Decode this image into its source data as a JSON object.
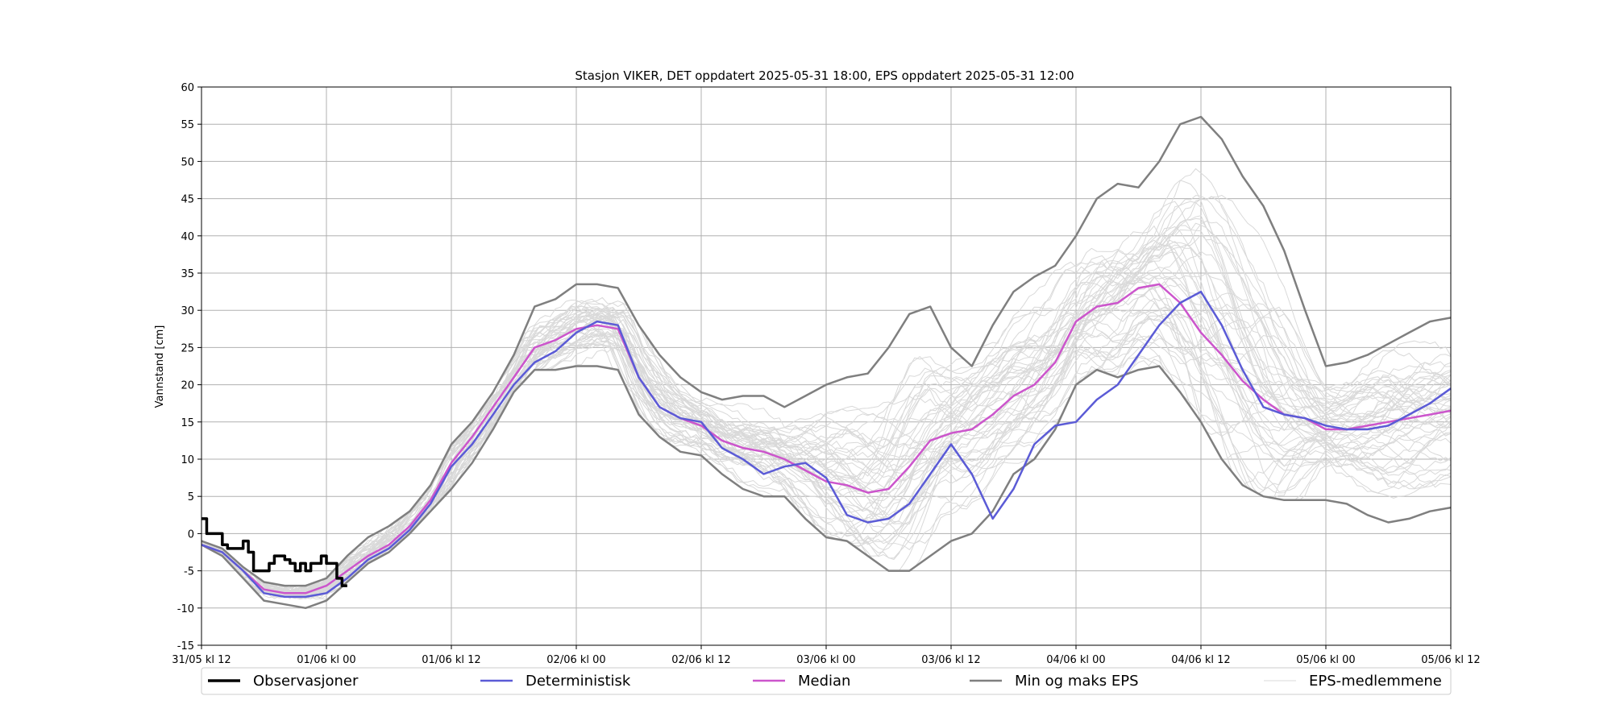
{
  "chart_data": {
    "type": "line",
    "title": "Stasjon VIKER, DET oppdatert 2025-05-31 18:00, EPS oppdatert 2025-05-31 12:00",
    "ylabel": "Vannstand [cm]",
    "xlabel": "",
    "x_ticks": [
      "31/05 kl 12",
      "01/06 kl 00",
      "01/06 kl 12",
      "02/06 kl 00",
      "02/06 kl 12",
      "03/06 kl 00",
      "03/06 kl 12",
      "04/06 kl 00",
      "04/06 kl 12",
      "05/06 kl 00",
      "05/06 kl 12"
    ],
    "x_unit": "hours since 31/05 kl 12",
    "xlim": [
      0,
      120
    ],
    "ylim": [
      -15,
      60
    ],
    "y_ticks": [
      -15,
      -10,
      -5,
      0,
      5,
      10,
      15,
      20,
      25,
      30,
      35,
      40,
      45,
      50,
      55,
      60
    ],
    "grid": true,
    "legend_position": "bottom",
    "legend": [
      "Observasjoner",
      "Deterministisk",
      "Median",
      "Min og maks EPS",
      "EPS-medlemmene"
    ],
    "colors": {
      "observasjoner": "#000000",
      "deterministisk": "#5b5bd6",
      "median": "#cc55cc",
      "minmax": "#7f7f7f",
      "eps": "#d9d9d9",
      "grid": "#b0b0b0"
    },
    "series": [
      {
        "name": "Observasjoner",
        "x": [
          0,
          0.5,
          1,
          1.5,
          2,
          2.5,
          3,
          3.5,
          4,
          4.5,
          5,
          5.5,
          6,
          6.5,
          7,
          7.5,
          8,
          8.5,
          9,
          9.5,
          10,
          10.5,
          11,
          11.5,
          12,
          12.5,
          13,
          13.5,
          14
        ],
        "y": [
          2,
          0,
          0,
          0,
          -1.5,
          -2,
          -2,
          -2,
          -1,
          -2.5,
          -5,
          -5,
          -5,
          -4,
          -3,
          -3,
          -3.5,
          -4,
          -5,
          -4,
          -5,
          -4,
          -4,
          -3,
          -4,
          -4,
          -6,
          -7,
          -7
        ]
      },
      {
        "name": "Deterministisk",
        "x": [
          0,
          2,
          4,
          6,
          8,
          10,
          12,
          14,
          16,
          18,
          20,
          22,
          24,
          26,
          28,
          30,
          32,
          34,
          36,
          38,
          40,
          42,
          44,
          46,
          48,
          50,
          52,
          54,
          56,
          58,
          60,
          62,
          64,
          66,
          68,
          70,
          72,
          74,
          76,
          78,
          80,
          82,
          84,
          86,
          88,
          90,
          92,
          94,
          96,
          98,
          100,
          102,
          104,
          106,
          108,
          110,
          112,
          114,
          116,
          118,
          120
        ],
        "y": [
          -1.5,
          -2.5,
          -5,
          -8,
          -8.5,
          -8.5,
          -8,
          -6,
          -3.5,
          -2,
          0.5,
          4,
          9,
          12,
          16,
          20,
          23,
          24.5,
          27,
          28.5,
          28,
          21,
          17,
          15.5,
          15,
          11.5,
          10,
          8,
          9,
          9.5,
          7.5,
          2.5,
          1.5,
          2,
          4,
          8,
          12,
          8,
          2,
          6,
          12,
          14.5,
          15,
          18,
          20,
          24,
          28,
          31,
          32.5,
          28,
          22,
          17,
          16,
          15.5,
          14.5,
          14,
          14,
          14.5,
          16,
          17.5,
          19.5
        ]
      },
      {
        "name": "Median",
        "x": [
          0,
          2,
          4,
          6,
          8,
          10,
          12,
          14,
          16,
          18,
          20,
          22,
          24,
          26,
          28,
          30,
          32,
          34,
          36,
          38,
          40,
          42,
          44,
          46,
          48,
          50,
          52,
          54,
          56,
          58,
          60,
          62,
          64,
          66,
          68,
          70,
          72,
          74,
          76,
          78,
          80,
          82,
          84,
          86,
          88,
          90,
          92,
          94,
          96,
          98,
          100,
          102,
          104,
          106,
          108,
          110,
          112,
          114,
          116,
          118,
          120
        ],
        "y": [
          -1.5,
          -2.5,
          -5,
          -7.5,
          -8,
          -8,
          -7,
          -5,
          -3,
          -1.5,
          1,
          4.5,
          9.5,
          13,
          17,
          21,
          25,
          26,
          27.5,
          28,
          27.5,
          21,
          17,
          15.5,
          14.5,
          12.5,
          11.5,
          11,
          10,
          8.5,
          7,
          6.5,
          5.5,
          6,
          9,
          12.5,
          13.5,
          14,
          16,
          18.5,
          20,
          23,
          28.5,
          30.5,
          31,
          33,
          33.5,
          31,
          27,
          24,
          20.5,
          18,
          16,
          15.5,
          14,
          14,
          14.5,
          15,
          15.5,
          16,
          16.5
        ]
      },
      {
        "name": "Min EPS",
        "x": [
          0,
          2,
          4,
          6,
          8,
          10,
          12,
          14,
          16,
          18,
          20,
          22,
          24,
          26,
          28,
          30,
          32,
          34,
          36,
          38,
          40,
          42,
          44,
          46,
          48,
          50,
          52,
          54,
          56,
          58,
          60,
          62,
          64,
          66,
          68,
          70,
          72,
          74,
          76,
          78,
          80,
          82,
          84,
          86,
          88,
          90,
          92,
          94,
          96,
          98,
          100,
          102,
          104,
          106,
          108,
          110,
          112,
          114,
          116,
          118,
          120
        ],
        "y": [
          -1.5,
          -3,
          -6,
          -9,
          -9.5,
          -10,
          -9,
          -6.5,
          -4,
          -2.5,
          0,
          3,
          6,
          9.5,
          14,
          19,
          22,
          22,
          22.5,
          22.5,
          22,
          16,
          13,
          11,
          10.5,
          8,
          6,
          5,
          5,
          2,
          -0.5,
          -1,
          -3,
          -5,
          -5,
          -3,
          -1,
          0,
          3,
          8,
          10,
          14,
          20,
          22,
          21,
          22,
          22.5,
          19,
          15,
          10,
          6.5,
          5,
          4.5,
          4.5,
          4.5,
          4,
          2.5,
          1.5,
          2,
          3,
          3.5
        ]
      },
      {
        "name": "Maks EPS",
        "x": [
          0,
          2,
          4,
          6,
          8,
          10,
          12,
          14,
          16,
          18,
          20,
          22,
          24,
          26,
          28,
          30,
          32,
          34,
          36,
          38,
          40,
          42,
          44,
          46,
          48,
          50,
          52,
          54,
          56,
          58,
          60,
          62,
          64,
          66,
          68,
          70,
          72,
          74,
          76,
          78,
          80,
          82,
          84,
          86,
          88,
          90,
          92,
          94,
          96,
          98,
          100,
          102,
          104,
          106,
          108,
          110,
          112,
          114,
          116,
          118,
          120
        ],
        "y": [
          -1,
          -2,
          -4.5,
          -6.5,
          -7,
          -7,
          -6,
          -3,
          -0.5,
          1,
          3,
          6.5,
          12,
          15,
          19,
          24,
          30.5,
          31.5,
          33.5,
          33.5,
          33,
          28,
          24,
          21,
          19,
          18,
          18.5,
          18.5,
          17,
          18.5,
          20,
          21,
          21.5,
          25,
          29.5,
          30.5,
          25,
          22.5,
          28,
          32.5,
          34.5,
          36,
          40,
          45,
          47,
          46.5,
          50,
          55,
          56,
          53,
          48,
          44,
          38,
          30,
          22.5,
          23,
          24,
          25.5,
          27,
          28.5,
          29
        ]
      }
    ],
    "eps_members_note": "EPS-medlemmene drawn as ~50 thin light-grey lines around the median between the min and max envelope"
  }
}
